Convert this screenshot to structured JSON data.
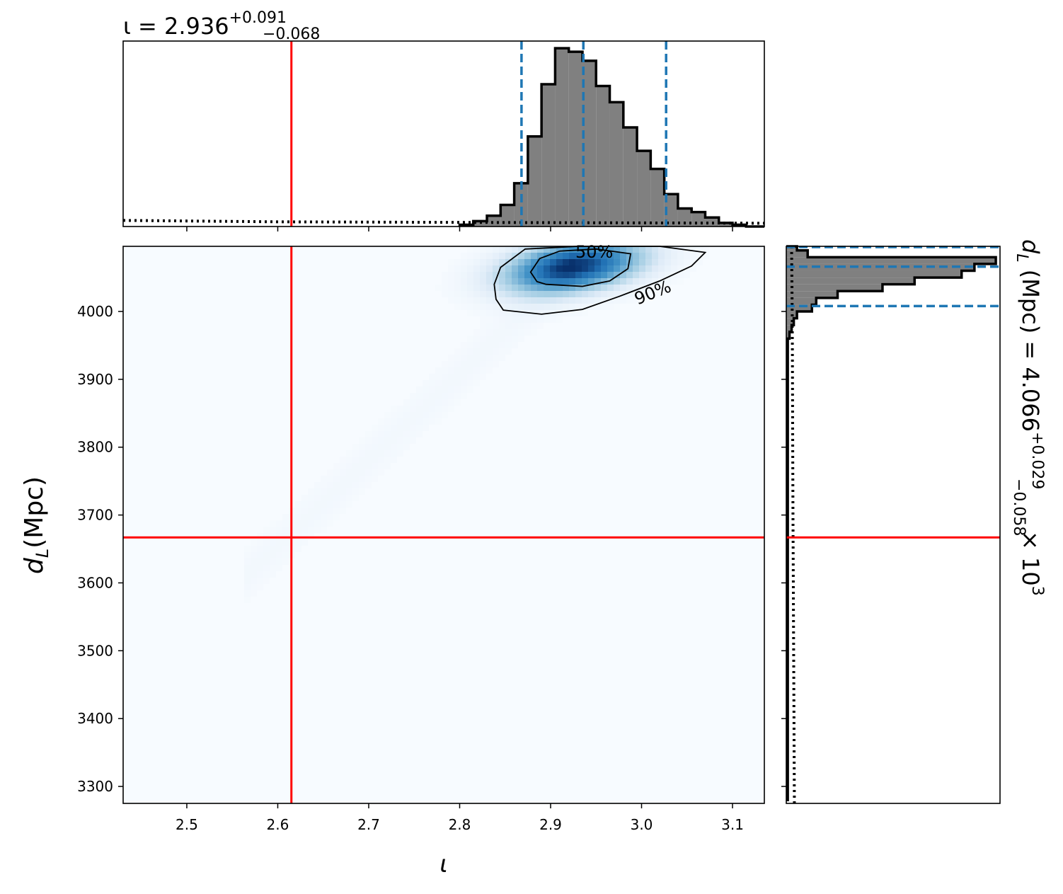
{
  "chart_data": [
    {
      "panel": "top-marginal",
      "type": "histogram",
      "parameter": "ι",
      "title_main": "ι = 2.936",
      "title_sup": "+0.091",
      "title_sub": "−0.068",
      "xlim": [
        2.43,
        3.135
      ],
      "bin_edges": [
        2.8,
        2.815,
        2.83,
        2.845,
        2.86,
        2.875,
        2.89,
        2.905,
        2.92,
        2.935,
        2.95,
        2.965,
        2.98,
        2.995,
        3.01,
        3.025,
        3.04,
        3.055,
        3.07,
        3.085,
        3.1,
        3.115,
        3.135
      ],
      "counts": [
        1,
        3,
        6,
        12,
        24,
        50,
        79,
        99,
        97,
        92,
        78,
        69,
        55,
        42,
        32,
        18,
        10,
        8,
        5,
        2,
        1,
        0
      ],
      "prior_level": 3,
      "prior_style": "dotted",
      "quantiles": [
        2.868,
        2.936,
        3.027
      ],
      "quantile_color": "#1f77b4",
      "true_value": 2.615,
      "true_color": "#ff0000"
    },
    {
      "panel": "joint",
      "type": "heatmap",
      "xlabel": "ι",
      "ylabel_main": "d",
      "ylabel_sub": "L",
      "ylabel_unit": "(Mpc)",
      "xlim": [
        2.43,
        3.135
      ],
      "ylim": [
        3275,
        4096
      ],
      "x_ticks": [
        "2.5",
        "2.6",
        "2.7",
        "2.8",
        "2.9",
        "3.0",
        "3.1"
      ],
      "x_tick_values": [
        2.5,
        2.6,
        2.7,
        2.8,
        2.9,
        3.0,
        3.1
      ],
      "y_ticks": [
        "3300",
        "3400",
        "3500",
        "3600",
        "3700",
        "3800",
        "3900",
        "4000"
      ],
      "y_tick_values": [
        3300,
        3400,
        3500,
        3600,
        3700,
        3800,
        3900,
        4000
      ],
      "density_peak": {
        "x": 2.925,
        "y": 4066
      },
      "density_spread": {
        "x": 0.05,
        "y": 26
      },
      "colormap": "Blues",
      "contour_labels": [
        "50%",
        "90%"
      ],
      "contour_50": [
        [
          2.895,
          4040
        ],
        [
          2.935,
          4037
        ],
        [
          2.965,
          4045
        ],
        [
          2.985,
          4063
        ],
        [
          2.988,
          4085
        ],
        [
          2.95,
          4092
        ],
        [
          2.91,
          4089
        ],
        [
          2.888,
          4078
        ],
        [
          2.878,
          4058
        ],
        [
          2.885,
          4044
        ]
      ],
      "contour_90": [
        [
          2.848,
          4002
        ],
        [
          2.89,
          3996
        ],
        [
          2.935,
          4003
        ],
        [
          2.975,
          4022
        ],
        [
          3.02,
          4045
        ],
        [
          3.055,
          4067
        ],
        [
          3.07,
          4087
        ],
        [
          3.02,
          4096
        ],
        [
          2.93,
          4096
        ],
        [
          2.872,
          4092
        ],
        [
          2.845,
          4065
        ],
        [
          2.838,
          4040
        ],
        [
          2.84,
          4018
        ]
      ],
      "true_x": 2.615,
      "true_y": 3667,
      "true_color": "#ff0000"
    },
    {
      "panel": "right-marginal",
      "type": "histogram",
      "orientation": "horizontal",
      "parameter": "d_L",
      "title_main": "d",
      "title_sub_L": "L",
      "title_rest": " (Mpc) = 4.066",
      "title_sup": "+0.029",
      "title_sub": "−0.058",
      "title_scale": " × 10",
      "title_exp": "3",
      "ylim": [
        3275,
        4096
      ],
      "bin_edges": [
        3280,
        3960,
        3970,
        3980,
        3990,
        4000,
        4010,
        4020,
        4030,
        4040,
        4050,
        4060,
        4070,
        4080,
        4090,
        4096
      ],
      "counts": [
        0.7,
        1.5,
        2.5,
        3.5,
        5,
        12,
        14,
        24,
        45,
        60,
        82,
        88,
        98,
        10,
        5
      ],
      "prior_level": 2.8,
      "prior_style": "dotted",
      "quantiles": [
        4008,
        4066,
        4095
      ],
      "quantile_color": "#1f77b4",
      "true_value": 3667,
      "true_color": "#ff0000"
    }
  ]
}
